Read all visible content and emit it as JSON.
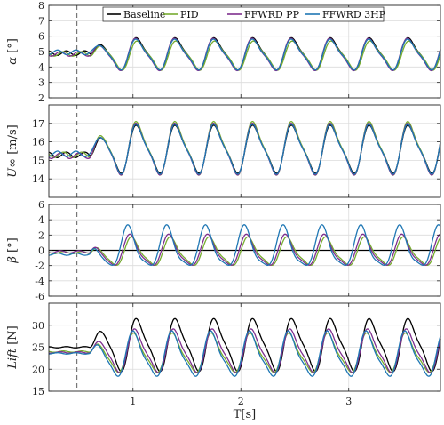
{
  "chart_data": {
    "type": "line",
    "xlabel": "T[s]",
    "xlim": [
      0.22,
      3.85
    ],
    "x_ticks": [
      1,
      2,
      3
    ],
    "x_tick_labels": [
      "1",
      "2",
      "3"
    ],
    "event_marker_x": 0.48,
    "legend": {
      "placement": "top",
      "entries": [
        {
          "name": "Baseline",
          "color": "#000000"
        },
        {
          "name": "PID",
          "color": "#77ac30"
        },
        {
          "name": "FFWRD PP",
          "color": "#7e2f8e"
        },
        {
          "name": "FFWRD 3HP",
          "color": "#1f77b4"
        }
      ]
    },
    "panels": [
      {
        "id": "alpha",
        "ylabel_symbol": "α",
        "ylabel_unit": " [°]",
        "ylim": [
          2,
          8
        ],
        "y_ticks": [
          2,
          3,
          4,
          5,
          6,
          7,
          8
        ],
        "y_tick_labels": [
          "2",
          "3",
          "4",
          "5",
          "6",
          "7",
          "8"
        ],
        "grid": true,
        "series_params": [
          {
            "name": "Baseline",
            "base": 4.85,
            "amp": 1.05,
            "phase": 0.0,
            "pre": 4.9
          },
          {
            "name": "PID",
            "base": 4.75,
            "amp": 0.95,
            "phase": -0.15,
            "pre": 4.85
          },
          {
            "name": "FFWRD PP",
            "base": 4.8,
            "amp": 1.05,
            "phase": 0.1,
            "pre": 4.85
          },
          {
            "name": "FFWRD 3HP",
            "base": 4.8,
            "amp": 1.0,
            "phase": 0.05,
            "pre": 4.95
          }
        ]
      },
      {
        "id": "uinf",
        "ylabel_symbol": "U∞",
        "ylabel_unit": " [m/s]",
        "ylim": [
          13,
          18
        ],
        "y_ticks": [
          14,
          15,
          16,
          17
        ],
        "y_tick_labels": [
          "14",
          "15",
          "16",
          "17"
        ],
        "grid": true,
        "series_params": [
          {
            "name": "Baseline",
            "base": 15.6,
            "amp": 1.3,
            "phase": 0.0,
            "pre": 15.3
          },
          {
            "name": "PID",
            "base": 15.65,
            "amp": 1.45,
            "phase": 0.02,
            "pre": 15.3
          },
          {
            "name": "FFWRD PP",
            "base": 15.6,
            "amp": 1.4,
            "phase": 0.04,
            "pre": 15.25
          },
          {
            "name": "FFWRD 3HP",
            "base": 15.6,
            "amp": 1.35,
            "phase": 0.03,
            "pre": 15.35
          }
        ]
      },
      {
        "id": "beta",
        "ylabel_symbol": "β",
        "ylabel_unit": " [°]",
        "ylim": [
          -6,
          6
        ],
        "y_ticks": [
          -6,
          -4,
          -2,
          0,
          2,
          4,
          6
        ],
        "y_tick_labels": [
          "-6",
          "-4",
          "-2",
          "0",
          "2",
          "4",
          "6"
        ],
        "grid": true,
        "series_params": [
          {
            "name": "Baseline",
            "base": 0.0,
            "amp": 0.0,
            "phase": 0.0,
            "pre": 0.0
          },
          {
            "name": "PID",
            "base": -0.3,
            "amp": 1.9,
            "phase": 0.9,
            "pre": -0.3
          },
          {
            "name": "FFWRD PP",
            "base": -0.2,
            "amp": 2.1,
            "phase": 1.2,
            "pre": -0.2
          },
          {
            "name": "FFWRD 3HP",
            "base": 0.2,
            "amp": 2.8,
            "phase": 1.6,
            "pre": -0.5
          }
        ]
      },
      {
        "id": "lift",
        "ylabel_symbol": "Lift",
        "ylabel_unit": " [N]",
        "ylim": [
          15,
          35
        ],
        "y_ticks": [
          15,
          20,
          25,
          30
        ],
        "y_tick_labels": [
          "15",
          "20",
          "25",
          "30"
        ],
        "grid": true,
        "series_params": [
          {
            "name": "Baseline",
            "base": 25.5,
            "amp": 6.0,
            "phase": 0.0,
            "pre": 25.0
          },
          {
            "name": "PID",
            "base": 23.5,
            "amp": 4.5,
            "phase": 0.5,
            "pre": 24.0
          },
          {
            "name": "FFWRD PP",
            "base": 24.0,
            "amp": 5.0,
            "phase": 0.3,
            "pre": 23.8
          },
          {
            "name": "FFWRD 3HP",
            "base": 23.2,
            "amp": 5.2,
            "phase": 0.6,
            "pre": 23.6
          }
        ]
      }
    ],
    "oscillation": {
      "onset": 0.6,
      "period": 0.36,
      "pre_ripple": 0.15
    }
  }
}
